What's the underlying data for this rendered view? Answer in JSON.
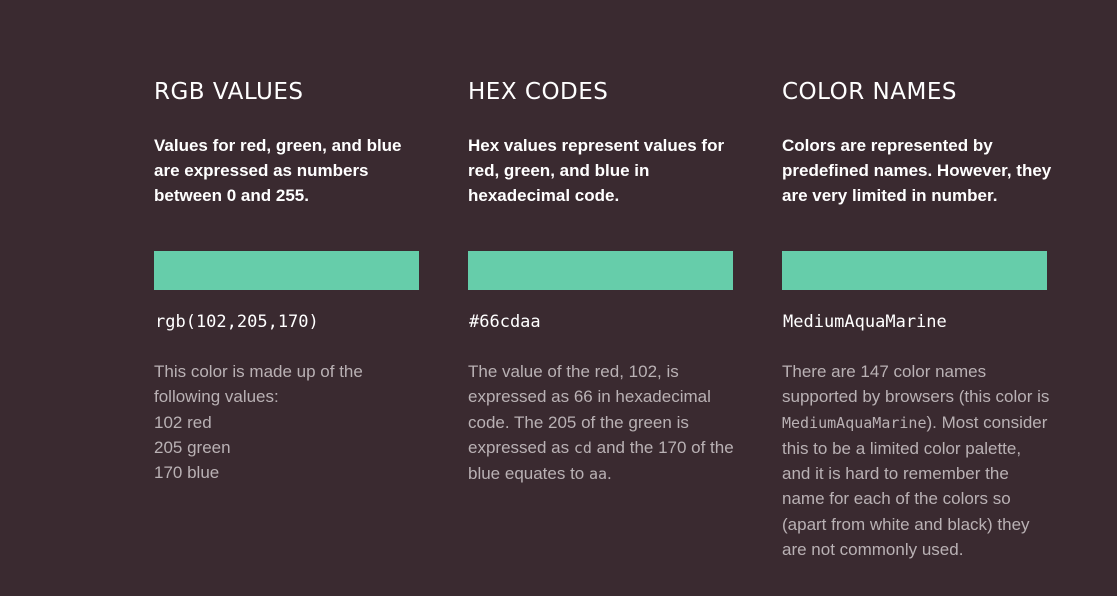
{
  "swatch_color": "#66cdaa",
  "columns": {
    "rgb": {
      "heading": "RGB VALUES",
      "intro": "Values for red, green, and blue are expressed as numbers between 0 and 255.",
      "value": "rgb(102,205,170)",
      "desc_intro": "This color is made up of the following values:",
      "desc_lines": [
        "102 red",
        "205 green",
        "170 blue"
      ]
    },
    "hex": {
      "heading": "HEX CODES",
      "intro": "Hex values represent values for red, green, and blue in hexadecimal code.",
      "value": "#66cdaa",
      "desc_part1": "The value of the red, 102, is expressed as 66 in hexadecimal code. The 205 of the green is expressed as ",
      "desc_code1": "cd",
      "desc_part2": " and the 170 of the blue equates to ",
      "desc_code2": "aa",
      "desc_part3": "."
    },
    "names": {
      "heading": "COLOR NAMES",
      "intro": "Colors are represented by predefined names. However, they are very limited in number.",
      "value": "MediumAquaMarine",
      "desc_part1": "There are 147 color names supported by browsers (this color is ",
      "desc_code": "MediumAquaMarine",
      "desc_part2": "). Most consider this to be a limited color palette, and it is hard to remember the name for each of the colors so (apart from white and black) they are not commonly used."
    }
  }
}
